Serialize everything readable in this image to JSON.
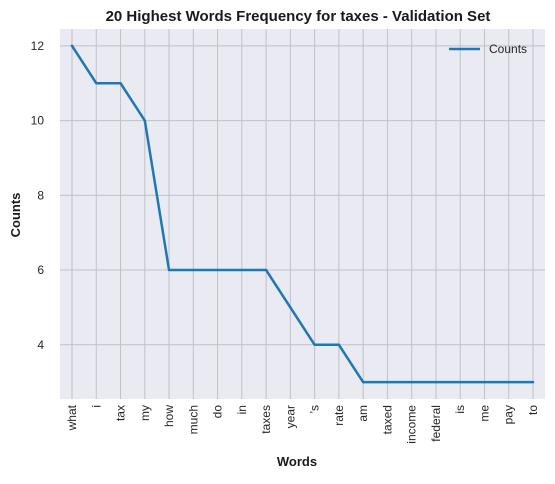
{
  "chart_data": {
    "type": "line",
    "title": "20 Highest Words Frequency for taxes - Validation Set",
    "xlabel": "Words",
    "ylabel": "Counts",
    "categories": [
      "what",
      "i",
      "tax",
      "my",
      "how",
      "much",
      "do",
      "in",
      "taxes",
      "year",
      "'s",
      "rate",
      "am",
      "taxed",
      "income",
      "federal",
      "is",
      "me",
      "pay",
      "to"
    ],
    "series": [
      {
        "name": "Counts",
        "values": [
          12,
          11,
          11,
          10,
          6,
          6,
          6,
          6,
          6,
          5,
          4,
          4,
          3,
          3,
          3,
          3,
          3,
          3,
          3,
          3
        ],
        "color": "#1f77b4"
      }
    ],
    "ylim": [
      2.55,
      12.45
    ],
    "yticks": [
      4,
      6,
      8,
      10,
      12
    ],
    "grid": true,
    "legend_position": "top-right",
    "background_color": "#eaeaf2",
    "grid_color": "#c0c0c8"
  }
}
